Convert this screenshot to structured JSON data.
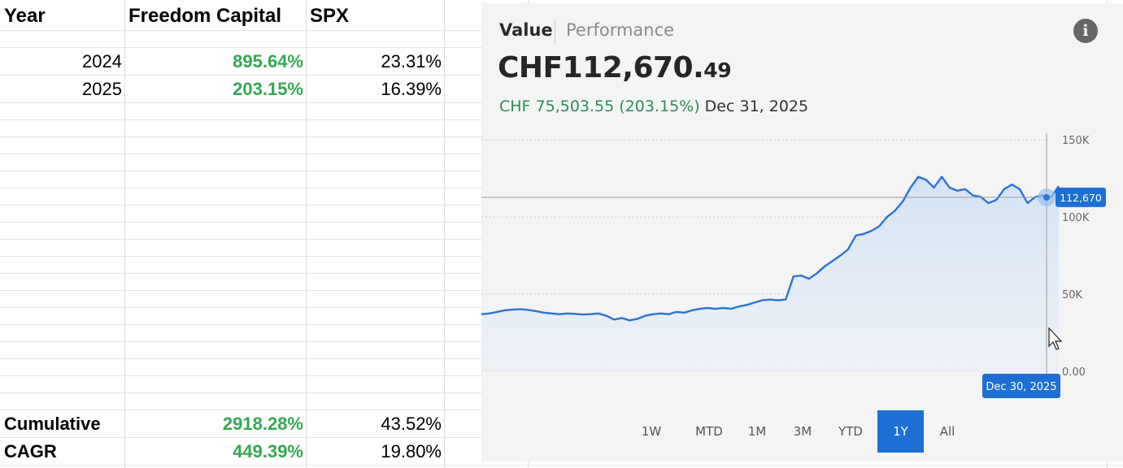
{
  "sheet": {
    "headers": {
      "year": "Year",
      "freedom": "Freedom Capital",
      "spx": "SPX"
    },
    "rows": [
      {
        "year": "2024",
        "freedom": "895.64%",
        "spx": "23.31%"
      },
      {
        "year": "2025",
        "freedom": "203.15%",
        "spx": "16.39%"
      }
    ],
    "summary": [
      {
        "label": "Cumulative",
        "freedom": "2918.28%",
        "spx": "43.52%"
      },
      {
        "label": "CAGR",
        "freedom": "449.39%",
        "spx": "19.80%"
      }
    ]
  },
  "card": {
    "tabs": {
      "value": "Value",
      "performance": "Performance"
    },
    "value": {
      "main": "CHF112,670.",
      "cents": "49"
    },
    "change": {
      "amount": "CHF 75,503.55 (203.15%)",
      "date": "Dec 31, 2025"
    },
    "ranges": [
      "1W",
      "MTD",
      "1M",
      "3M",
      "YTD",
      "1Y",
      "All"
    ],
    "active_range": "1Y",
    "colors": {
      "line": "#2a74d3",
      "accent": "#1e6fd4",
      "positive": "#2e8b57"
    }
  },
  "chart_data": {
    "type": "area",
    "title": "",
    "xlabel": "",
    "ylabel": "",
    "ylim": [
      0,
      150000
    ],
    "y_ticks": [
      "150K",
      "100K",
      "50K",
      "0.00"
    ],
    "y_tick_values": [
      150000,
      100000,
      50000,
      0
    ],
    "crosshair_value_label": "112,670",
    "crosshair_value": 112670,
    "crosshair_date_label": "Dec 30, 2025",
    "series": [
      {
        "name": "Value",
        "values": [
          37000,
          37500,
          38500,
          39500,
          40000,
          40200,
          39800,
          39000,
          38000,
          37500,
          37000,
          37500,
          37200,
          36800,
          37000,
          37500,
          36000,
          33500,
          34500,
          33000,
          34000,
          36000,
          37000,
          37500,
          37000,
          38500,
          38000,
          39500,
          40500,
          41000,
          40500,
          41000,
          40500,
          42000,
          43000,
          44500,
          46000,
          46500,
          46000,
          46500,
          61500,
          62000,
          60000,
          63500,
          68000,
          71500,
          75000,
          79000,
          88000,
          89000,
          91000,
          94000,
          100000,
          104000,
          110000,
          119000,
          126000,
          124000,
          119000,
          126000,
          119000,
          117000,
          118000,
          114000,
          113000,
          109000,
          111000,
          118000,
          121000,
          118000,
          109000,
          113000,
          114000,
          112670,
          120000
        ]
      }
    ]
  }
}
